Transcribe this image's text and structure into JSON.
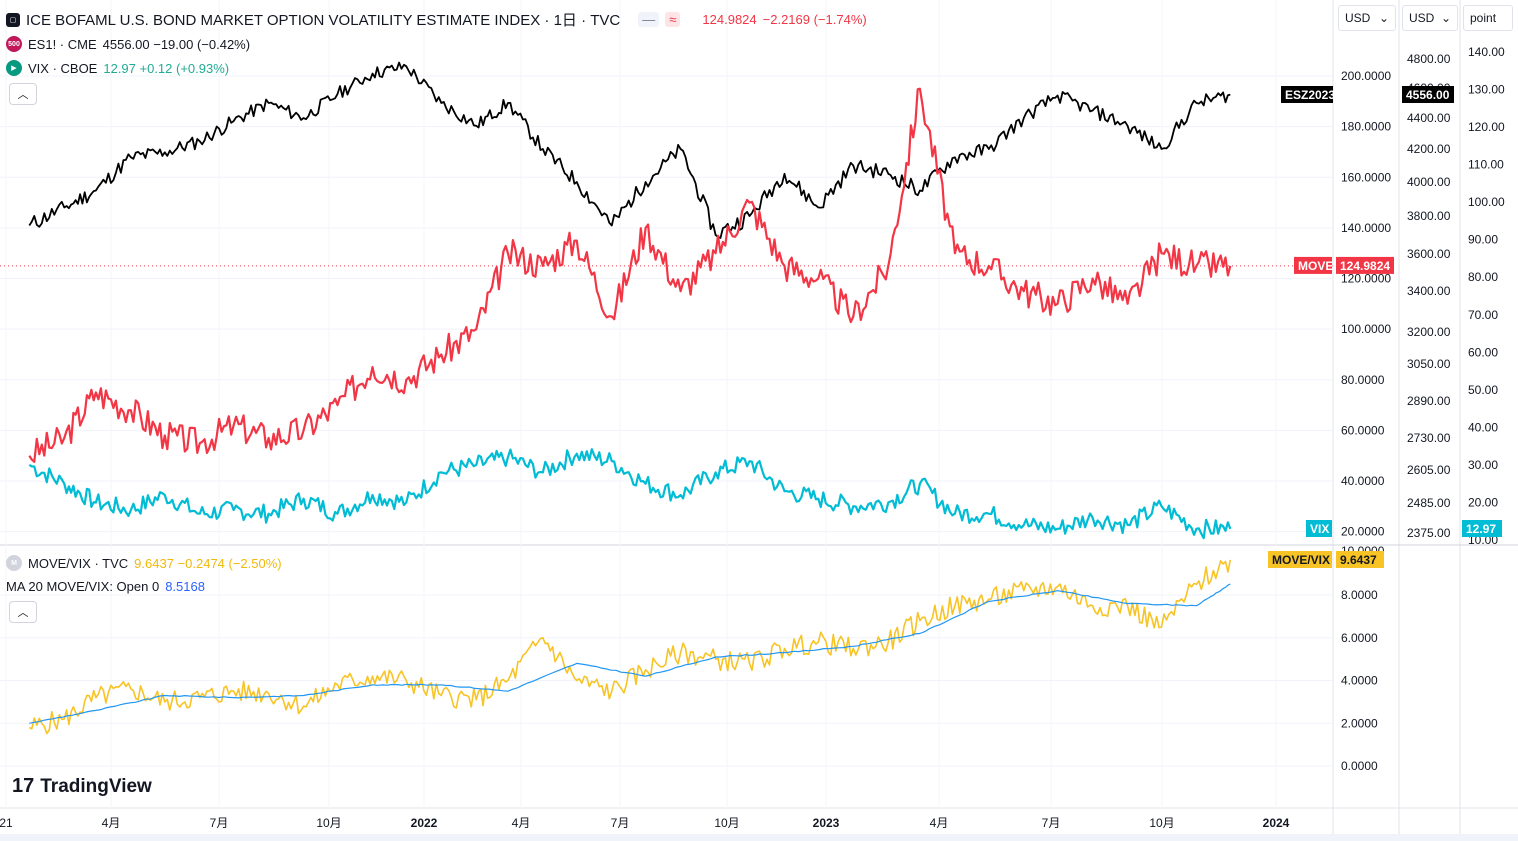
{
  "header": {
    "title": "ICE BOFAML U.S. BOND MARKET OPTION VOLATILITY ESTIMATE INDEX · 1日 · TVC",
    "main_value": "124.9824",
    "main_change": "−2.2169 (−1.74%)",
    "btn_hide": "—",
    "btn_compare": "≈"
  },
  "legend": [
    {
      "icon": "500",
      "name": "ES1! · CME",
      "value": "4556.00 −19.00 (−0.42%)",
      "color": "#131722",
      "icon_color": "#c2185b"
    },
    {
      "icon": "▶",
      "name": "VIX · CBOE",
      "value": "12.97 +0.12 (+0.93%)",
      "color": "#22ab94",
      "icon_color": "#089981"
    }
  ],
  "lower_legend": [
    {
      "name": "MOVE/VIX · TVC",
      "value": "9.6437 −0.2474 (−2.50%)",
      "color": "#f0b90b"
    },
    {
      "name": "MA 20 MOVE/VIX: Open 0",
      "value": "8.5168",
      "color": "#2962ff"
    }
  ],
  "currency_selects": [
    {
      "label": "USD"
    },
    {
      "label": "USD"
    },
    {
      "label": "point"
    }
  ],
  "axes": {
    "move_ticks": [
      "200.0000",
      "180.0000",
      "160.0000",
      "140.0000",
      "120.0000",
      "100.0000",
      "80.0000",
      "60.0000",
      "40.0000",
      "20.0000"
    ],
    "es_ticks": [
      "4800.00",
      "4600.00",
      "4400.00",
      "4200.00",
      "4000.00",
      "3800.00",
      "3600.00",
      "3400.00",
      "3200.00",
      "3050.00",
      "2890.00",
      "2730.00",
      "2605.00",
      "2485.00",
      "2375.00"
    ],
    "vix_ticks": [
      "140.00",
      "130.00",
      "120.00",
      "110.00",
      "100.00",
      "90.00",
      "80.00",
      "70.00",
      "60.00",
      "50.00",
      "40.00",
      "30.00",
      "20.00",
      "10.00"
    ],
    "ratio_ticks": [
      "8.0000",
      "6.0000",
      "4.0000",
      "2.0000",
      "0.0000"
    ],
    "time_ticks": [
      "21",
      "4月",
      "7月",
      "10月",
      "2022",
      "4月",
      "7月",
      "10月",
      "2023",
      "4月",
      "7月",
      "10月",
      "2024"
    ]
  },
  "price_tags": {
    "move_label": "MOVE",
    "move_value": "124.9824",
    "es_label": "ESZ2023",
    "es_value": "4556.00",
    "vix_label": "VIX",
    "vix_value": "12.97",
    "ratio_label": "MOVE/VIX",
    "ratio_value": "9.6437"
  },
  "brand": "TradingView",
  "colors": {
    "move": "#f23645",
    "es": "#000000",
    "vix": "#00bcd4",
    "ratio": "#f7c325",
    "ma": "#2196f3"
  },
  "chart_data": [
    {
      "type": "line",
      "title": "ICE BOFAML U.S. BOND MARKET OPTION VOLATILITY ESTIMATE INDEX",
      "x_range": [
        "2021-01",
        "2023-12"
      ],
      "series": [
        {
          "name": "MOVE",
          "unit": "index",
          "ylim": [
            10,
            220
          ],
          "points": [
            [
              "2021-01",
              50
            ],
            [
              "2021-02",
              57
            ],
            [
              "2021-03",
              75
            ],
            [
              "2021-04",
              68
            ],
            [
              "2021-05",
              58
            ],
            [
              "2021-06",
              55
            ],
            [
              "2021-07",
              62
            ],
            [
              "2021-08",
              57
            ],
            [
              "2021-09",
              60
            ],
            [
              "2021-10",
              70
            ],
            [
              "2021-11",
              85
            ],
            [
              "2021-12",
              80
            ],
            [
              "2022-01",
              90
            ],
            [
              "2022-02",
              100
            ],
            [
              "2022-03",
              130
            ],
            [
              "2022-04",
              125
            ],
            [
              "2022-05",
              135
            ],
            [
              "2022-06",
              105
            ],
            [
              "2022-07",
              140
            ],
            [
              "2022-08",
              115
            ],
            [
              "2022-09",
              130
            ],
            [
              "2022-10",
              150
            ],
            [
              "2022-11",
              125
            ],
            [
              "2022-12",
              120
            ],
            [
              "2023-01",
              105
            ],
            [
              "2023-02",
              125
            ],
            [
              "2023-03",
              195
            ],
            [
              "2023-04",
              130
            ],
            [
              "2023-05",
              125
            ],
            [
              "2023-06",
              115
            ],
            [
              "2023-07",
              110
            ],
            [
              "2023-08",
              120
            ],
            [
              "2023-09",
              110
            ],
            [
              "2023-10",
              130
            ],
            [
              "2023-11",
              125
            ],
            [
              "2023-12",
              125
            ]
          ]
        },
        {
          "name": "ES1!",
          "unit": "USD",
          "points": [
            [
              "2021-01",
              3750
            ],
            [
              "2021-02",
              3850
            ],
            [
              "2021-03",
              3950
            ],
            [
              "2021-04",
              4150
            ],
            [
              "2021-05",
              4180
            ],
            [
              "2021-06",
              4250
            ],
            [
              "2021-07",
              4380
            ],
            [
              "2021-08",
              4500
            ],
            [
              "2021-09",
              4400
            ],
            [
              "2021-10",
              4560
            ],
            [
              "2021-11",
              4700
            ],
            [
              "2021-12",
              4750
            ],
            [
              "2022-01",
              4500
            ],
            [
              "2022-02",
              4350
            ],
            [
              "2022-03",
              4500
            ],
            [
              "2022-04",
              4200
            ],
            [
              "2022-05",
              4000
            ],
            [
              "2022-06",
              3750
            ],
            [
              "2022-07",
              4000
            ],
            [
              "2022-08",
              4200
            ],
            [
              "2022-09",
              3700
            ],
            [
              "2022-10",
              3800
            ],
            [
              "2022-11",
              4050
            ],
            [
              "2022-12",
              3850
            ],
            [
              "2023-01",
              4100
            ],
            [
              "2023-02",
              4050
            ],
            [
              "2023-03",
              3950
            ],
            [
              "2023-04",
              4150
            ],
            [
              "2023-05",
              4200
            ],
            [
              "2023-06",
              4400
            ],
            [
              "2023-07",
              4550
            ],
            [
              "2023-08",
              4450
            ],
            [
              "2023-09",
              4350
            ],
            [
              "2023-10",
              4200
            ],
            [
              "2023-11",
              4500
            ],
            [
              "2023-12",
              4556
            ]
          ]
        },
        {
          "name": "VIX",
          "unit": "point",
          "points": [
            [
              "2021-01",
              30
            ],
            [
              "2021-02",
              25
            ],
            [
              "2021-03",
              20
            ],
            [
              "2021-04",
              18
            ],
            [
              "2021-05",
              22
            ],
            [
              "2021-06",
              17
            ],
            [
              "2021-07",
              18
            ],
            [
              "2021-08",
              17
            ],
            [
              "2021-09",
              21
            ],
            [
              "2021-10",
              17
            ],
            [
              "2021-11",
              22
            ],
            [
              "2021-12",
              20
            ],
            [
              "2022-01",
              28
            ],
            [
              "2022-02",
              30
            ],
            [
              "2022-03",
              32
            ],
            [
              "2022-04",
              28
            ],
            [
              "2022-05",
              33
            ],
            [
              "2022-06",
              31
            ],
            [
              "2022-07",
              25
            ],
            [
              "2022-08",
              22
            ],
            [
              "2022-09",
              28
            ],
            [
              "2022-10",
              31
            ],
            [
              "2022-11",
              23
            ],
            [
              "2022-12",
              21
            ],
            [
              "2023-01",
              19
            ],
            [
              "2023-02",
              20
            ],
            [
              "2023-03",
              25
            ],
            [
              "2023-04",
              17
            ],
            [
              "2023-05",
              17
            ],
            [
              "2023-06",
              14
            ],
            [
              "2023-07",
              13
            ],
            [
              "2023-08",
              16
            ],
            [
              "2023-09",
              14
            ],
            [
              "2023-10",
              19
            ],
            [
              "2023-11",
              13
            ],
            [
              "2023-12",
              12.97
            ]
          ]
        }
      ]
    },
    {
      "type": "line",
      "title": "MOVE/VIX",
      "ylim": [
        -1,
        10
      ],
      "series": [
        {
          "name": "MOVE/VIX",
          "points": [
            [
              "2021-01",
              1.8
            ],
            [
              "2021-02",
              2.2
            ],
            [
              "2021-03",
              3.2
            ],
            [
              "2021-04",
              3.6
            ],
            [
              "2021-05",
              3.0
            ],
            [
              "2021-06",
              3.2
            ],
            [
              "2021-07",
              3.5
            ],
            [
              "2021-08",
              3.4
            ],
            [
              "2021-09",
              2.8
            ],
            [
              "2021-10",
              3.8
            ],
            [
              "2021-11",
              4.2
            ],
            [
              "2021-12",
              4.0
            ],
            [
              "2022-01",
              3.3
            ],
            [
              "2022-02",
              3.1
            ],
            [
              "2022-03",
              4.0
            ],
            [
              "2022-04",
              6.0
            ],
            [
              "2022-05",
              4.0
            ],
            [
              "2022-06",
              3.5
            ],
            [
              "2022-07",
              4.5
            ],
            [
              "2022-08",
              5.3
            ],
            [
              "2022-09",
              5.0
            ],
            [
              "2022-10",
              4.8
            ],
            [
              "2022-11",
              5.5
            ],
            [
              "2022-12",
              5.8
            ],
            [
              "2023-01",
              5.5
            ],
            [
              "2023-02",
              5.8
            ],
            [
              "2023-03",
              6.8
            ],
            [
              "2023-04",
              7.5
            ],
            [
              "2023-05",
              7.8
            ],
            [
              "2023-06",
              8.2
            ],
            [
              "2023-07",
              8.4
            ],
            [
              "2023-08",
              7.5
            ],
            [
              "2023-09",
              7.5
            ],
            [
              "2023-10",
              6.5
            ],
            [
              "2023-11",
              8.5
            ],
            [
              "2023-12",
              9.6437
            ]
          ]
        },
        {
          "name": "MA 20 MOVE/VIX",
          "points": [
            [
              "2021-01",
              2.0
            ],
            [
              "2021-03",
              2.6
            ],
            [
              "2021-05",
              3.3
            ],
            [
              "2021-07",
              3.2
            ],
            [
              "2021-09",
              3.3
            ],
            [
              "2021-11",
              3.8
            ],
            [
              "2022-01",
              3.8
            ],
            [
              "2022-03",
              3.5
            ],
            [
              "2022-05",
              4.8
            ],
            [
              "2022-07",
              4.2
            ],
            [
              "2022-09",
              5.1
            ],
            [
              "2022-11",
              5.3
            ],
            [
              "2023-01",
              5.6
            ],
            [
              "2023-03",
              6.2
            ],
            [
              "2023-05",
              7.7
            ],
            [
              "2023-07",
              8.2
            ],
            [
              "2023-09",
              7.6
            ],
            [
              "2023-11",
              7.5
            ],
            [
              "2023-12",
              8.5168
            ]
          ]
        }
      ]
    }
  ]
}
